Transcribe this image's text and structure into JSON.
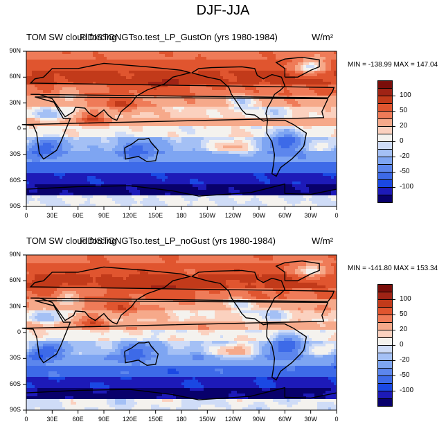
{
  "figure_title": "DJF-JJA",
  "units": "W/m²",
  "colors": {
    "palette": [
      "#08006b",
      "#1d1ab8",
      "#1a48e3",
      "#3d6ae8",
      "#5c86ed",
      "#7ea5f2",
      "#a4c0f5",
      "#cfdcf7",
      "#f4f2ee",
      "#fbd1bf",
      "#f6a98a",
      "#ef7b58",
      "#e0552f",
      "#c23a1a",
      "#a02315",
      "#7a0e0a"
    ],
    "coast": "#000000"
  },
  "panels": [
    {
      "title": "TOM SW cloud forcing",
      "subtitle": "FIDISTONGTso.test_LP_GustOn (yrs 1980-1984)",
      "min_label": "MIN = -138.99",
      "max_label": "MAX = 147.04"
    },
    {
      "title": "TOM SW cloud forcing",
      "subtitle": "FIDISTONGTso.test_LP_noGust (yrs 1980-1984)",
      "min_label": "MIN = -141.80",
      "max_label": "MAX = 153.34"
    }
  ],
  "chart_data": [
    {
      "type": "contour-map",
      "title": "TOM SW cloud forcing — FIDISTONGTso.test_LP_GustOn (yrs 1980-1984)",
      "units": "W/m²",
      "min": -138.99,
      "max": 147.04,
      "x_ticks": [
        "0",
        "30E",
        "60E",
        "90E",
        "120E",
        "150E",
        "180",
        "150W",
        "120W",
        "90W",
        "60W",
        "30W",
        "0"
      ],
      "y_ticks": [
        "90N",
        "60N",
        "30N",
        "0",
        "30S",
        "60S",
        "90S"
      ],
      "colorbar_labels": [
        "100",
        "50",
        "20",
        "0",
        "-20",
        "-50",
        "-100"
      ],
      "xlim": [
        0,
        360
      ],
      "ylim": [
        -90,
        90
      ]
    },
    {
      "type": "contour-map",
      "title": "TOM SW cloud forcing — FIDISTONGTso.test_LP_noGust (yrs 1980-1984)",
      "units": "W/m²",
      "min": -141.8,
      "max": 153.34,
      "x_ticks": [
        "0",
        "30E",
        "60E",
        "90E",
        "120E",
        "150E",
        "180",
        "150W",
        "120W",
        "90W",
        "60W",
        "30W",
        "0"
      ],
      "y_ticks": [
        "90N",
        "60N",
        "30N",
        "0",
        "30S",
        "60S",
        "90S"
      ],
      "colorbar_labels": [
        "100",
        "50",
        "20",
        "0",
        "-20",
        "-50",
        "-100"
      ],
      "xlim": [
        0,
        360
      ],
      "ylim": [
        -90,
        90
      ]
    }
  ]
}
